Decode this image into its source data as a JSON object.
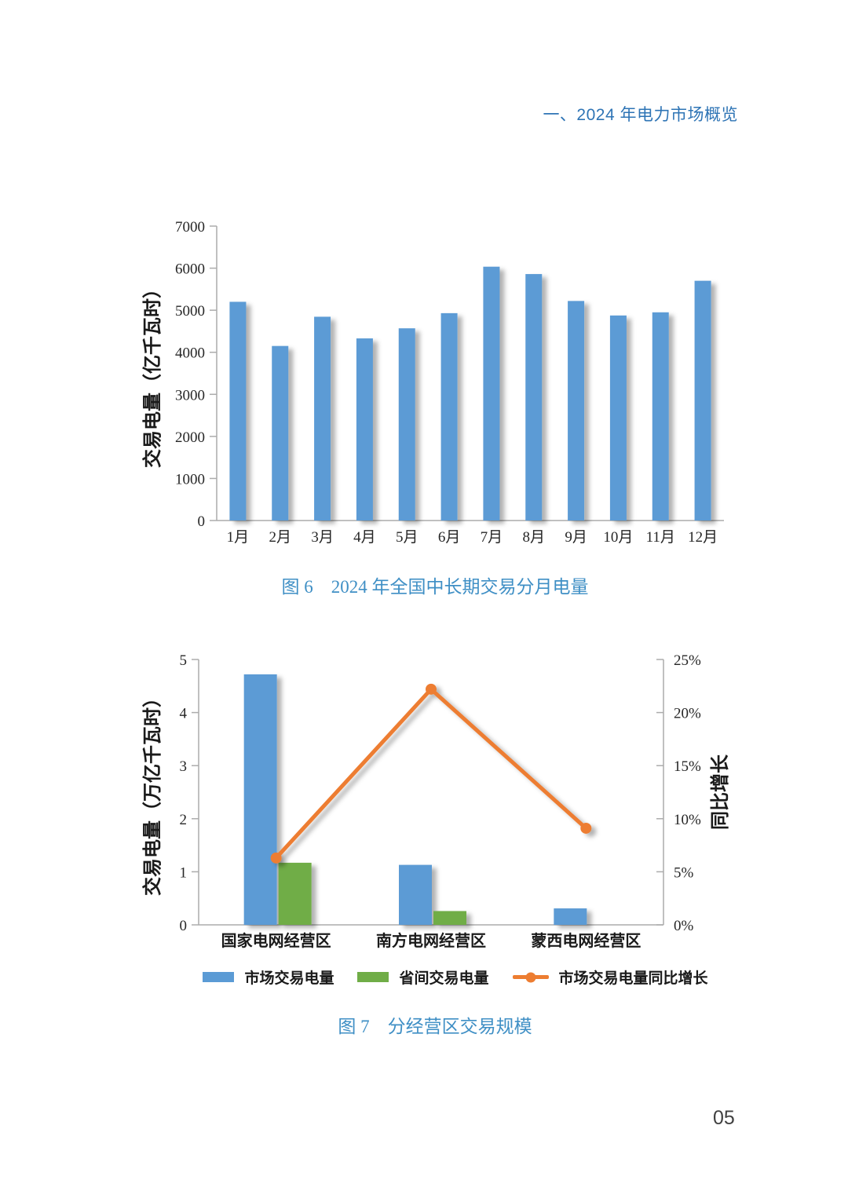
{
  "page": {
    "header": "一、2024 年电力市场概览",
    "page_number": "05"
  },
  "colors": {
    "header_blue": "#2E74B5",
    "caption_blue": "#3F8FC5",
    "bar_blue": "#5B9BD5",
    "bar_green": "#70AD47",
    "line_orange": "#ED7D31",
    "axis_gray": "#ACACAC",
    "tick_text": "#262626"
  },
  "figure6": {
    "caption": "图 6　2024 年全国中长期交易分月电量"
  },
  "figure7": {
    "caption": "图 7　分经营区交易规模"
  },
  "chart_data": [
    {
      "type": "bar",
      "title": "图 6　2024 年全国中长期交易分月电量",
      "categories": [
        "1月",
        "2月",
        "3月",
        "4月",
        "5月",
        "6月",
        "7月",
        "8月",
        "9月",
        "10月",
        "11月",
        "12月"
      ],
      "values": [
        5200,
        4150,
        4845,
        4330,
        4570,
        4930,
        6035,
        5860,
        5220,
        4875,
        4950,
        5700
      ],
      "xlabel": "",
      "ylabel": "交易电量（亿千瓦时）",
      "ylim": [
        0,
        7000
      ],
      "ytick_labels": [
        "0",
        "1000",
        "2000",
        "3000",
        "4000",
        "5000",
        "6000",
        "7000"
      ],
      "grid": false,
      "bar_color": "#5B9BD5",
      "legend": "none"
    },
    {
      "type": "bar",
      "subtype": "bar+line dual axis",
      "title": "图 7　分经营区交易规模",
      "categories": [
        "国家电网经营区",
        "南方电网经营区",
        "蒙西电网经营区"
      ],
      "series": [
        {
          "name": "市场交易电量",
          "chart": "bar",
          "axis": "left",
          "color": "#5B9BD5",
          "values": [
            4.72,
            1.13,
            0.31
          ]
        },
        {
          "name": "省间交易电量",
          "chart": "bar",
          "axis": "left",
          "color": "#70AD47",
          "values": [
            1.17,
            0.26,
            null
          ]
        },
        {
          "name": "市场交易电量同比增长",
          "chart": "line",
          "axis": "right",
          "color": "#ED7D31",
          "values": [
            6.3,
            22.2,
            9.1
          ],
          "unit": "%"
        }
      ],
      "ylabel_left": "交易电量（万亿千瓦时）",
      "ylabel_right": "同比增长",
      "ylim_left": [
        0,
        5
      ],
      "ylim_right": [
        0,
        25
      ],
      "ytick_labels_left": [
        "0",
        "1",
        "2",
        "3",
        "4",
        "5"
      ],
      "ytick_labels_right": [
        "0%",
        "5%",
        "10%",
        "15%",
        "20%",
        "25%"
      ],
      "grid": false,
      "legend_position": "bottom"
    }
  ]
}
